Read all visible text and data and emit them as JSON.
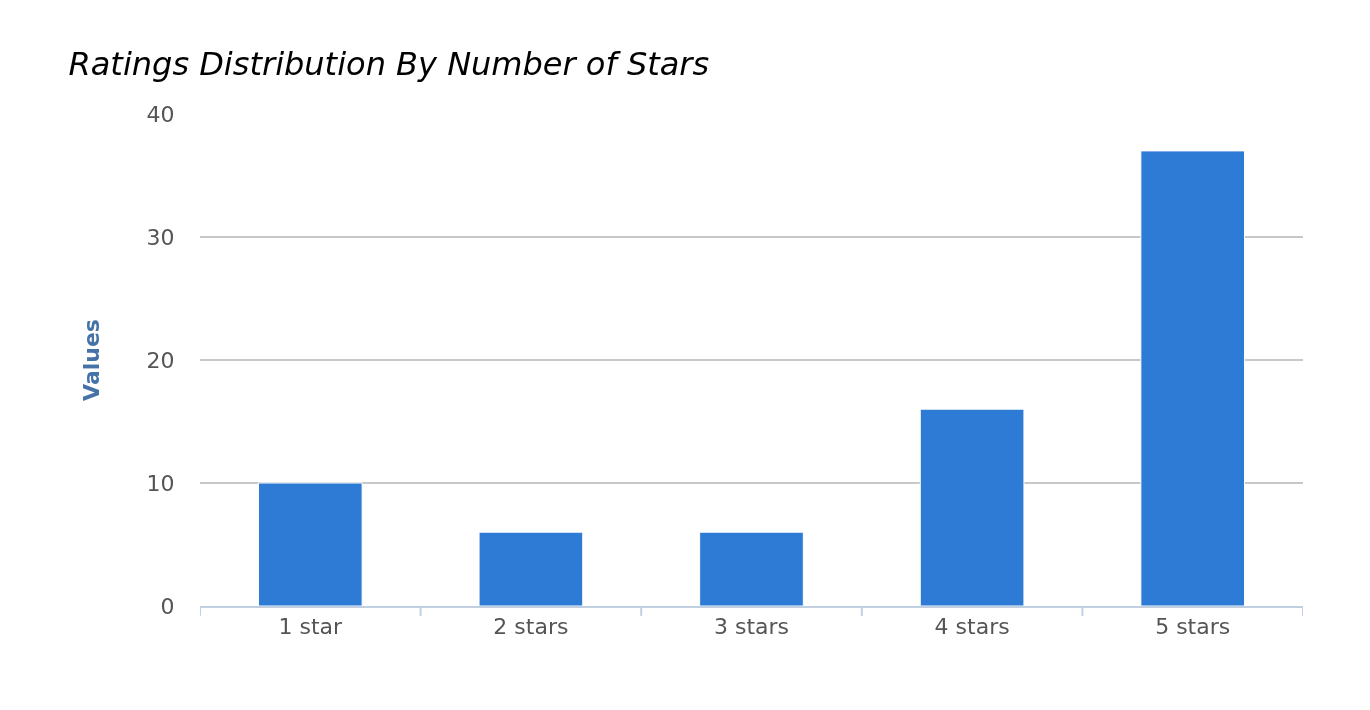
{
  "chart_data": {
    "type": "bar",
    "title": "Ratings Distribution By Number of Stars",
    "ylabel": "Values",
    "categories": [
      "1 star",
      "2 stars",
      "3 stars",
      "4 stars",
      "5 stars"
    ],
    "values": [
      10,
      6,
      6,
      16,
      37
    ],
    "color": "#2e7bd6",
    "ylim": [
      0,
      40
    ],
    "yticks": [
      0,
      10,
      20,
      30,
      40
    ],
    "grid": "y"
  }
}
